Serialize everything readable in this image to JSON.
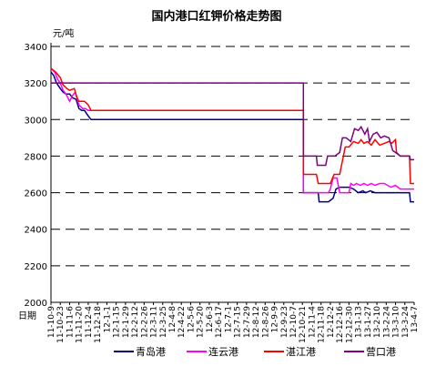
{
  "chart_data": {
    "type": "line",
    "title": "国内港口红钾价格走势图",
    "ylabel": "元/吨",
    "xlabel": "日期",
    "ylim": [
      2000,
      3400
    ],
    "yticks": [
      2000,
      2200,
      2400,
      2600,
      2800,
      3000,
      3200,
      3400
    ],
    "grid": true,
    "legend_position": "bottom",
    "x_tick_labels": [
      "11-10-9",
      "11-10-23",
      "11-11-6",
      "11-11-20",
      "11-12-4",
      "11-12-18",
      "12-1-1",
      "12-1-15",
      "12-1-29",
      "12-2-12",
      "12-2-26",
      "12-3-11",
      "12-3-25",
      "12-4-8",
      "12-4-22",
      "12-5-6",
      "12-5-20",
      "12-6-3",
      "12-6-17",
      "12-7-1",
      "12-7-15",
      "12-7-29",
      "12-8-12",
      "12-8-26",
      "12-9-9",
      "12-9-23",
      "12-10-7",
      "12-10-21",
      "12-11-4",
      "12-11-18",
      "12-12-2",
      "12-12-16",
      "12-12-30",
      "13-1-13",
      "13-1-27",
      "13-2-10",
      "13-2-24",
      "13-3-10",
      "13-3-24",
      "13-4-7"
    ],
    "series": [
      {
        "name": "青岛港",
        "color": "#000080",
        "points": [
          [
            0,
            3260
          ],
          [
            0.3,
            3240
          ],
          [
            0.6,
            3200
          ],
          [
            1,
            3170
          ],
          [
            1.3,
            3150
          ],
          [
            1.6,
            3140
          ],
          [
            2,
            3140
          ],
          [
            2.3,
            3120
          ],
          [
            2.7,
            3110
          ],
          [
            3,
            3060
          ],
          [
            3.3,
            3050
          ],
          [
            3.6,
            3050
          ],
          [
            4,
            3020
          ],
          [
            4.3,
            3000
          ],
          [
            6,
            3000
          ],
          [
            8,
            3000
          ],
          [
            10,
            3000
          ],
          [
            12,
            3000
          ],
          [
            14,
            3000
          ],
          [
            16,
            3000
          ],
          [
            18,
            3000
          ],
          [
            20,
            3000
          ],
          [
            22,
            3000
          ],
          [
            24,
            3000
          ],
          [
            25.5,
            3000
          ],
          [
            26.9,
            3000
          ],
          [
            27.1,
            3000
          ],
          [
            27.1,
            2600
          ],
          [
            28.5,
            2600
          ],
          [
            28.7,
            2600
          ],
          [
            28.8,
            2550
          ],
          [
            29.8,
            2550
          ],
          [
            30.3,
            2570
          ],
          [
            30.6,
            2620
          ],
          [
            31,
            2630
          ],
          [
            32,
            2630
          ],
          [
            32.5,
            2620
          ],
          [
            33,
            2600
          ],
          [
            33.5,
            2610
          ],
          [
            33.8,
            2600
          ],
          [
            34.3,
            2610
          ],
          [
            34.8,
            2600
          ],
          [
            35.5,
            2600
          ],
          [
            36.5,
            2600
          ],
          [
            37.5,
            2600
          ],
          [
            38,
            2600
          ],
          [
            38.5,
            2600
          ],
          [
            38.6,
            2550
          ],
          [
            39,
            2550
          ]
        ]
      },
      {
        "name": "连云港",
        "color": "#ff00ff",
        "points": [
          [
            0,
            3280
          ],
          [
            0.4,
            3260
          ],
          [
            0.7,
            3220
          ],
          [
            1,
            3200
          ],
          [
            1.3,
            3160
          ],
          [
            1.6,
            3140
          ],
          [
            2,
            3100
          ],
          [
            2.3,
            3130
          ],
          [
            2.6,
            3150
          ],
          [
            3,
            3080
          ],
          [
            3.4,
            3060
          ],
          [
            3.7,
            3060
          ],
          [
            4,
            3050
          ],
          [
            4.3,
            3050
          ],
          [
            6,
            3050
          ],
          [
            8,
            3050
          ],
          [
            10,
            3050
          ],
          [
            12,
            3050
          ],
          [
            14,
            3050
          ],
          [
            16,
            3050
          ],
          [
            18,
            3050
          ],
          [
            20,
            3050
          ],
          [
            22,
            3050
          ],
          [
            24,
            3050
          ],
          [
            25.5,
            3050
          ],
          [
            27.1,
            3050
          ],
          [
            27.1,
            2600
          ],
          [
            28,
            2600
          ],
          [
            29,
            2600
          ],
          [
            29.8,
            2600
          ],
          [
            30,
            2620
          ],
          [
            30.3,
            2680
          ],
          [
            30.7,
            2680
          ],
          [
            31,
            2600
          ],
          [
            32,
            2600
          ],
          [
            32.2,
            2650
          ],
          [
            32.5,
            2640
          ],
          [
            32.8,
            2650
          ],
          [
            33.2,
            2640
          ],
          [
            33.6,
            2650
          ],
          [
            34,
            2640
          ],
          [
            34.4,
            2650
          ],
          [
            34.8,
            2640
          ],
          [
            35.3,
            2650
          ],
          [
            35.8,
            2650
          ],
          [
            36.5,
            2630
          ],
          [
            37,
            2640
          ],
          [
            37.5,
            2620
          ],
          [
            38,
            2620
          ],
          [
            38.5,
            2620
          ],
          [
            39,
            2620
          ]
        ]
      },
      {
        "name": "湛江港",
        "color": "#ff0000",
        "points": [
          [
            0,
            3280
          ],
          [
            0.5,
            3260
          ],
          [
            1,
            3230
          ],
          [
            1.3,
            3190
          ],
          [
            1.7,
            3170
          ],
          [
            2,
            3160
          ],
          [
            2.5,
            3170
          ],
          [
            2.8,
            3120
          ],
          [
            3,
            3100
          ],
          [
            3.3,
            3100
          ],
          [
            3.6,
            3100
          ],
          [
            4,
            3080
          ],
          [
            4.3,
            3050
          ],
          [
            6,
            3050
          ],
          [
            8,
            3050
          ],
          [
            10,
            3050
          ],
          [
            12,
            3050
          ],
          [
            14,
            3050
          ],
          [
            16,
            3050
          ],
          [
            18,
            3050
          ],
          [
            20,
            3050
          ],
          [
            22,
            3050
          ],
          [
            24,
            3050
          ],
          [
            25.5,
            3050
          ],
          [
            27.1,
            3050
          ],
          [
            27.1,
            2700
          ],
          [
            28,
            2700
          ],
          [
            28.5,
            2700
          ],
          [
            28.7,
            2650
          ],
          [
            29.5,
            2650
          ],
          [
            30,
            2650
          ],
          [
            30.4,
            2700
          ],
          [
            31,
            2700
          ],
          [
            31.6,
            2850
          ],
          [
            32,
            2850
          ],
          [
            32.5,
            2880
          ],
          [
            33,
            2870
          ],
          [
            33.3,
            2890
          ],
          [
            33.6,
            2870
          ],
          [
            34,
            2880
          ],
          [
            34.4,
            2860
          ],
          [
            34.8,
            2890
          ],
          [
            35.3,
            2860
          ],
          [
            35.8,
            2870
          ],
          [
            36.3,
            2880
          ],
          [
            36.6,
            2870
          ],
          [
            37,
            2890
          ],
          [
            37.1,
            2820
          ],
          [
            37.5,
            2800
          ],
          [
            38.2,
            2800
          ],
          [
            38.5,
            2800
          ],
          [
            38.6,
            2650
          ],
          [
            39,
            2650
          ]
        ]
      },
      {
        "name": "营口港",
        "color": "#800080",
        "points": [
          [
            0,
            3200
          ],
          [
            2,
            3200
          ],
          [
            4,
            3200
          ],
          [
            6,
            3200
          ],
          [
            8,
            3200
          ],
          [
            10,
            3200
          ],
          [
            12,
            3200
          ],
          [
            14,
            3200
          ],
          [
            16,
            3200
          ],
          [
            18,
            3200
          ],
          [
            20,
            3200
          ],
          [
            22,
            3200
          ],
          [
            24,
            3200
          ],
          [
            26,
            3200
          ],
          [
            27.1,
            3200
          ],
          [
            27.1,
            2800
          ],
          [
            28,
            2800
          ],
          [
            28.5,
            2800
          ],
          [
            28.6,
            2750
          ],
          [
            29.5,
            2750
          ],
          [
            29.7,
            2800
          ],
          [
            30.5,
            2800
          ],
          [
            31,
            2820
          ],
          [
            31.3,
            2900
          ],
          [
            31.7,
            2900
          ],
          [
            32.2,
            2880
          ],
          [
            32.6,
            2950
          ],
          [
            33,
            2940
          ],
          [
            33.3,
            2960
          ],
          [
            33.7,
            2920
          ],
          [
            34,
            2950
          ],
          [
            34.2,
            2880
          ],
          [
            34.6,
            2920
          ],
          [
            35,
            2930
          ],
          [
            35.4,
            2900
          ],
          [
            35.8,
            2910
          ],
          [
            36.3,
            2900
          ],
          [
            36.7,
            2830
          ],
          [
            37,
            2820
          ],
          [
            37.5,
            2800
          ],
          [
            38,
            2800
          ],
          [
            38.5,
            2800
          ],
          [
            38.6,
            2780
          ],
          [
            39,
            2780
          ]
        ]
      }
    ]
  }
}
